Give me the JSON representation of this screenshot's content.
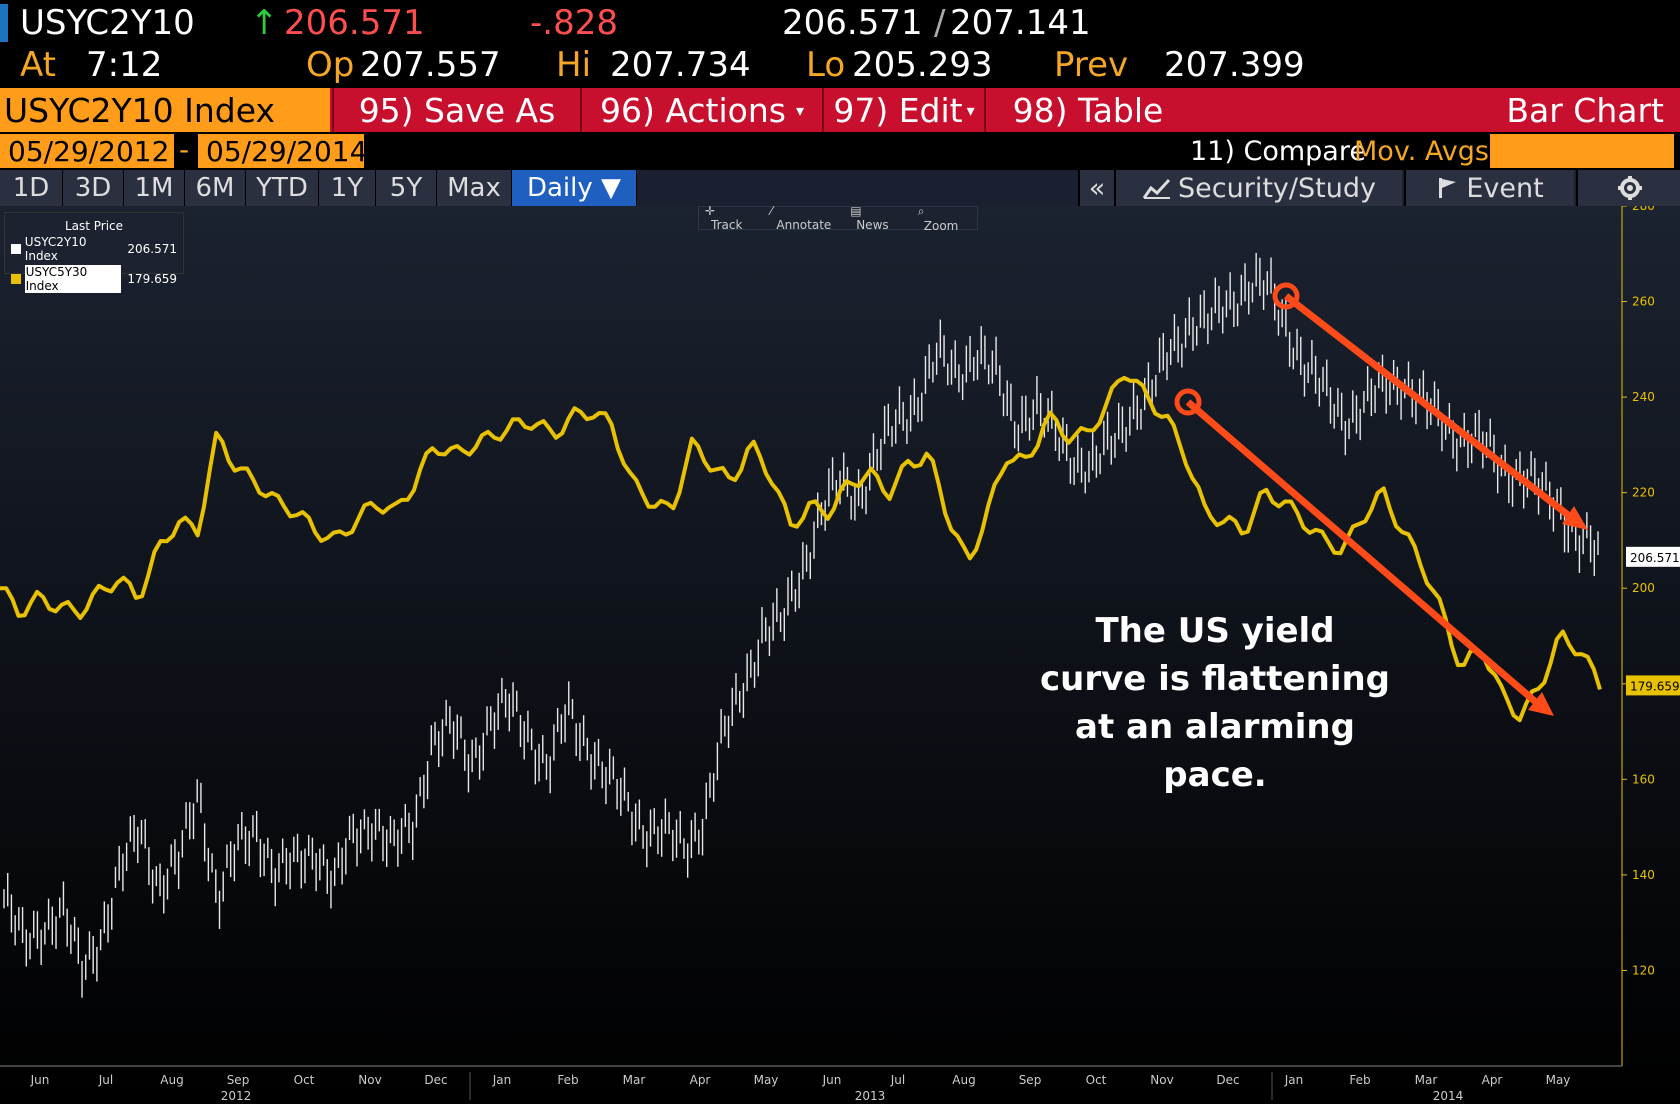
{
  "header": {
    "ticker": "USYC2Y10",
    "arrow": "↑",
    "last": "206.571",
    "change": "-.828",
    "bid": "206.571",
    "slash": "/",
    "ask": "207.141",
    "at_label": "At",
    "at_time": "7:12",
    "op_label": "Op",
    "op": "207.557",
    "hi_label": "Hi",
    "hi": "207.734",
    "lo_label": "Lo",
    "lo": "205.293",
    "prev_label": "Prev",
    "prev": "207.399"
  },
  "menu": {
    "security": "USYC2Y10 Index",
    "save_as": "95) Save As",
    "actions": "96) Actions",
    "edit": "97) Edit",
    "table": "98) Table",
    "view": "Bar Chart"
  },
  "range": {
    "start": "05/29/2012",
    "dash": "-",
    "end": "05/29/2014",
    "compare": "11) Compare",
    "mov_avgs": "Mov. Avgs"
  },
  "tabs": [
    "1D",
    "3D",
    "1M",
    "6M",
    "YTD",
    "1Y",
    "5Y",
    "Max"
  ],
  "frequency": "Daily ▼",
  "right_buttons": {
    "collapse": "«",
    "security_study": "Security/Study",
    "event": "Event"
  },
  "toolbar": {
    "track": "Track",
    "annotate": "Annotate",
    "news": "News",
    "zoom": "Zoom"
  },
  "legend": {
    "title": "Last Price",
    "items": [
      {
        "name": "USYC2Y10 Index",
        "value": "206.571",
        "color": "#ffffff"
      },
      {
        "name": "USYC5Y30 Index",
        "value": "179.659",
        "color": "#e8c100"
      }
    ]
  },
  "annotation": {
    "line1": "The US yield",
    "line2": "curve is flattening",
    "line3": "at an alarming",
    "line4": "pace."
  },
  "colors": {
    "bg_top": "#1b2230",
    "bg_bottom": "#000000",
    "bars": "#e8e8e8",
    "line": "#e8c100",
    "arrow": "#ff4a1a",
    "header_orange": "#ff9c1a",
    "menu_red": "#c8102e"
  },
  "chart_data": {
    "type": "line",
    "ylim": [
      100,
      280
    ],
    "y_ticks": [
      120,
      140,
      160,
      180,
      200,
      220,
      240,
      260,
      280
    ],
    "months": [
      "Jun",
      "Jul",
      "Aug",
      "Sep",
      "Oct",
      "Nov",
      "Dec",
      "Jan",
      "Feb",
      "Mar",
      "Apr",
      "May",
      "Jun",
      "Jul",
      "Aug",
      "Sep",
      "Oct",
      "Nov",
      "Dec",
      "Jan",
      "Feb",
      "Mar",
      "Apr",
      "May"
    ],
    "years": [
      "2012",
      "2013",
      "2014"
    ],
    "last_value_labels": [
      "206.571",
      "179.659"
    ],
    "series": [
      {
        "name": "USYC2Y10 Index",
        "style": "bar",
        "values": [
          135,
          125,
          130,
          132,
          120,
          128,
          140,
          150,
          138,
          142,
          158,
          135,
          145,
          150,
          140,
          142,
          146,
          138,
          148,
          152,
          145,
          150,
          168,
          170,
          164,
          172,
          175,
          170,
          162,
          174,
          168,
          160,
          155,
          150,
          148,
          146,
          152,
          168,
          180,
          190,
          192,
          204,
          215,
          222,
          220,
          228,
          235,
          240,
          248,
          245,
          250,
          244,
          235,
          238,
          232,
          228,
          225,
          230,
          238,
          240,
          250,
          256,
          255,
          260,
          264,
          262,
          255,
          246,
          240,
          236,
          238,
          242,
          244,
          238,
          235,
          232,
          230,
          226,
          224,
          220,
          218,
          210,
          206.571
        ]
      },
      {
        "name": "USYC5Y30 Index",
        "style": "line",
        "values": [
          200,
          195,
          198,
          196,
          195,
          199,
          202,
          198,
          208,
          214,
          212,
          232,
          225,
          222,
          218,
          216,
          212,
          210,
          214,
          218,
          216,
          222,
          230,
          228,
          230,
          232,
          234,
          235,
          232,
          236,
          237,
          234,
          222,
          218,
          216,
          230,
          226,
          222,
          230,
          224,
          213,
          217,
          216,
          222,
          224,
          220,
          226,
          228,
          215,
          205,
          216,
          228,
          226,
          236,
          232,
          232,
          238,
          246,
          240,
          236,
          228,
          216,
          214,
          212,
          220,
          218,
          214,
          210,
          208,
          215,
          220,
          212,
          205,
          195,
          183,
          188,
          178,
          173,
          180,
          190,
          187,
          179.659
        ]
      }
    ]
  }
}
